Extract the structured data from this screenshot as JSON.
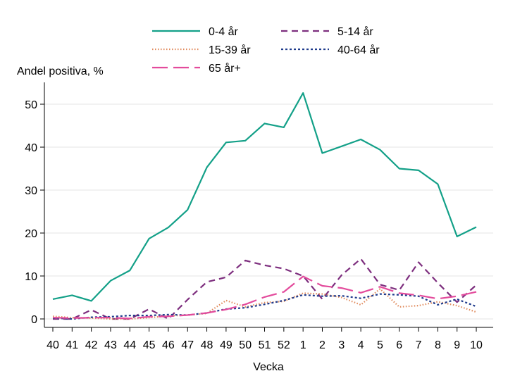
{
  "chart_data": {
    "type": "line",
    "title": "",
    "ylabel": "Andel positiva, %",
    "xlabel": "Vecka",
    "categories": [
      "40",
      "41",
      "42",
      "43",
      "44",
      "45",
      "46",
      "47",
      "48",
      "49",
      "50",
      "51",
      "52",
      "1",
      "2",
      "3",
      "4",
      "5",
      "6",
      "7",
      "8",
      "9",
      "10"
    ],
    "ylim": [
      0,
      55
    ],
    "yticks": [
      0,
      10,
      20,
      30,
      40,
      50
    ],
    "grid": true,
    "legend_position": "top",
    "series": [
      {
        "name": "0-4 år",
        "color": "#13a088",
        "style": "solid",
        "values": [
          4.6,
          5.5,
          4.2,
          8.9,
          11.3,
          18.7,
          21.3,
          25.4,
          35.3,
          41.1,
          41.5,
          45.5,
          44.6,
          52.6,
          38.6,
          40.2,
          41.8,
          39.4,
          35.0,
          34.6,
          31.4,
          19.2,
          21.4
        ]
      },
      {
        "name": "5-14 år",
        "color": "#7d2e7e",
        "style": "dashed",
        "values": [
          0.0,
          0.0,
          2.1,
          0.0,
          0.0,
          2.3,
          0.0,
          4.5,
          8.6,
          9.7,
          13.6,
          12.5,
          11.7,
          10.0,
          4.6,
          10.2,
          14.0,
          8.0,
          6.7,
          13.2,
          8.4,
          3.9,
          7.9
        ]
      },
      {
        "name": "15-39 år",
        "color": "#e08a5c",
        "style": "dotted",
        "values": [
          0.6,
          0.3,
          0.2,
          0.0,
          0.0,
          0.3,
          0.7,
          0.9,
          1.3,
          4.3,
          2.8,
          3.8,
          4.1,
          6.0,
          5.8,
          5.0,
          3.3,
          7.0,
          2.8,
          3.1,
          4.0,
          3.1,
          1.6
        ]
      },
      {
        "name": "40-64 år",
        "color": "#1f3b8c",
        "style": "dotted-dense",
        "values": [
          0.2,
          0.0,
          0.4,
          0.5,
          0.8,
          0.8,
          1.0,
          0.9,
          1.4,
          2.3,
          2.6,
          3.4,
          4.3,
          5.6,
          5.3,
          5.4,
          4.8,
          5.8,
          5.6,
          5.3,
          3.3,
          4.6,
          2.9
        ]
      },
      {
        "name": "65 år+",
        "color": "#e34b9c",
        "style": "longdash",
        "values": [
          0.3,
          0.2,
          0.3,
          0.3,
          0.1,
          0.5,
          0.6,
          0.9,
          1.4,
          2.2,
          3.4,
          5.1,
          6.3,
          9.9,
          7.7,
          7.2,
          6.1,
          7.5,
          6.0,
          5.5,
          4.7,
          5.3,
          6.3
        ]
      }
    ]
  }
}
